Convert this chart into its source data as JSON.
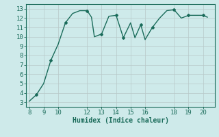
{
  "x": [
    8,
    8.5,
    9,
    9.5,
    10,
    10.5,
    11,
    11.5,
    12,
    12.3,
    12.5,
    13,
    13.5,
    14,
    14.5,
    15,
    15.3,
    15.7,
    16,
    16.5,
    17,
    17.5,
    18,
    18.5,
    19,
    19.5,
    20,
    20.3
  ],
  "y": [
    3.1,
    3.8,
    5.0,
    7.5,
    9.2,
    11.5,
    12.5,
    12.8,
    12.8,
    12.1,
    10.0,
    10.3,
    12.2,
    12.3,
    9.9,
    11.5,
    9.9,
    11.3,
    9.7,
    11.0,
    12.0,
    12.8,
    12.9,
    12.0,
    12.3,
    12.3,
    12.3,
    12.1
  ],
  "xlim": [
    7.8,
    20.8
  ],
  "ylim": [
    2.5,
    13.5
  ],
  "xticks": [
    8,
    9,
    10,
    12,
    13,
    14,
    15,
    16,
    18,
    19,
    20
  ],
  "yticks": [
    3,
    4,
    5,
    6,
    7,
    8,
    9,
    10,
    11,
    12,
    13
  ],
  "xlabel": "Humidex (Indice chaleur)",
  "line_color": "#1a6b5a",
  "bg_color": "#ceeaea",
  "grid_color": "#b8c8c8",
  "marker": "D",
  "marker_size": 2.0,
  "linewidth": 1.0
}
